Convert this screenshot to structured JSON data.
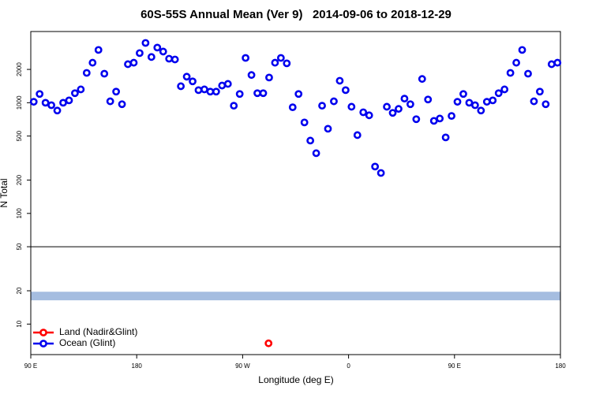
{
  "chart_data": {
    "type": "scatter",
    "title": "60S-55S Annual Mean (Ver 9)   2014-09-06 to 2018-12-29",
    "xlabel": "Longitude (deg E)",
    "ylabel": "N Total",
    "log_y": true,
    "xlim": [
      90,
      540
    ],
    "ylim": [
      5.3,
      4400
    ],
    "xticks": [
      {
        "value": 90,
        "label": "90 E"
      },
      180,
      {
        "value": 270,
        "label": "90 W"
      },
      {
        "value": 360,
        "label": "0"
      },
      {
        "value": 450,
        "label": "90 E"
      },
      {
        "value": 540,
        "label": "180"
      }
    ],
    "yticks": [
      10,
      20,
      50,
      100,
      200,
      500,
      1000,
      2000
    ],
    "hline": 50,
    "band": {
      "ylim": [
        16.4,
        19.6
      ],
      "color": "#a5bde0"
    },
    "legend": "bottom-left",
    "series": [
      {
        "name": "Land (Nadir&Glint)",
        "color": "#ff0000",
        "x": [
          292
        ],
        "values": [
          6.7
        ]
      },
      {
        "name": "Ocean (Glint)",
        "color": "#0000ee",
        "x": [
          92.5,
          97.5,
          102.5,
          107.5,
          112.5,
          117.5,
          122.5,
          127.5,
          132.5,
          137.5,
          142.5,
          147.5,
          152.5,
          157.5,
          162.5,
          167.5,
          172.5,
          177.5,
          182.5,
          187.5,
          192.5,
          197.5,
          202.5,
          207.5,
          212.5,
          217.5,
          222.5,
          227.5,
          232.5,
          237.5,
          242.5,
          247.5,
          252.5,
          257.5,
          262.5,
          267.5,
          272.5,
          277.5,
          282.5,
          287.5,
          292.5,
          297.5,
          302.5,
          307.5,
          312.5,
          317.5,
          322.5,
          327.5,
          332.5,
          337.5,
          342.5,
          347.5,
          352.5,
          357.5,
          362.5,
          367.5,
          372.5,
          377.5,
          382.5,
          387.5,
          392.5,
          397.5,
          402.5,
          407.5,
          412.5,
          417.5,
          422.5,
          427.5,
          432.5,
          437.5,
          442.5,
          447.5,
          452.5,
          457.5,
          462.5,
          467.5,
          472.5,
          477.5,
          482.5,
          487.5,
          492.5,
          497.5,
          502.5,
          507.5,
          512.5,
          517.5,
          522.5,
          527.5,
          532.5,
          537.5
        ],
        "values": [
          1020,
          1200,
          1000,
          950,
          850,
          1000,
          1050,
          1220,
          1320,
          1860,
          2300,
          3000,
          1830,
          1030,
          1260,
          970,
          2230,
          2300,
          2810,
          3470,
          2590,
          3150,
          2900,
          2500,
          2460,
          1410,
          1720,
          1560,
          1300,
          1320,
          1260,
          1260,
          1430,
          1480,
          940,
          1200,
          2540,
          1780,
          1220,
          1220,
          1690,
          2300,
          2540,
          2270,
          910,
          1200,
          664,
          455,
          350,
          940,
          582,
          1030,
          1580,
          1300,
          920,
          510,
          820,
          770,
          265,
          232,
          920,
          810,
          880,
          1090,
          970,
          710,
          1640,
          1070,
          686,
          720,
          486,
          760,
          1020,
          1200,
          1000,
          950,
          850,
          1020,
          1050,
          1220,
          1320,
          1860,
          2300,
          3000,
          1830,
          1030,
          1260,
          970,
          2230,
          2300
        ]
      }
    ]
  }
}
